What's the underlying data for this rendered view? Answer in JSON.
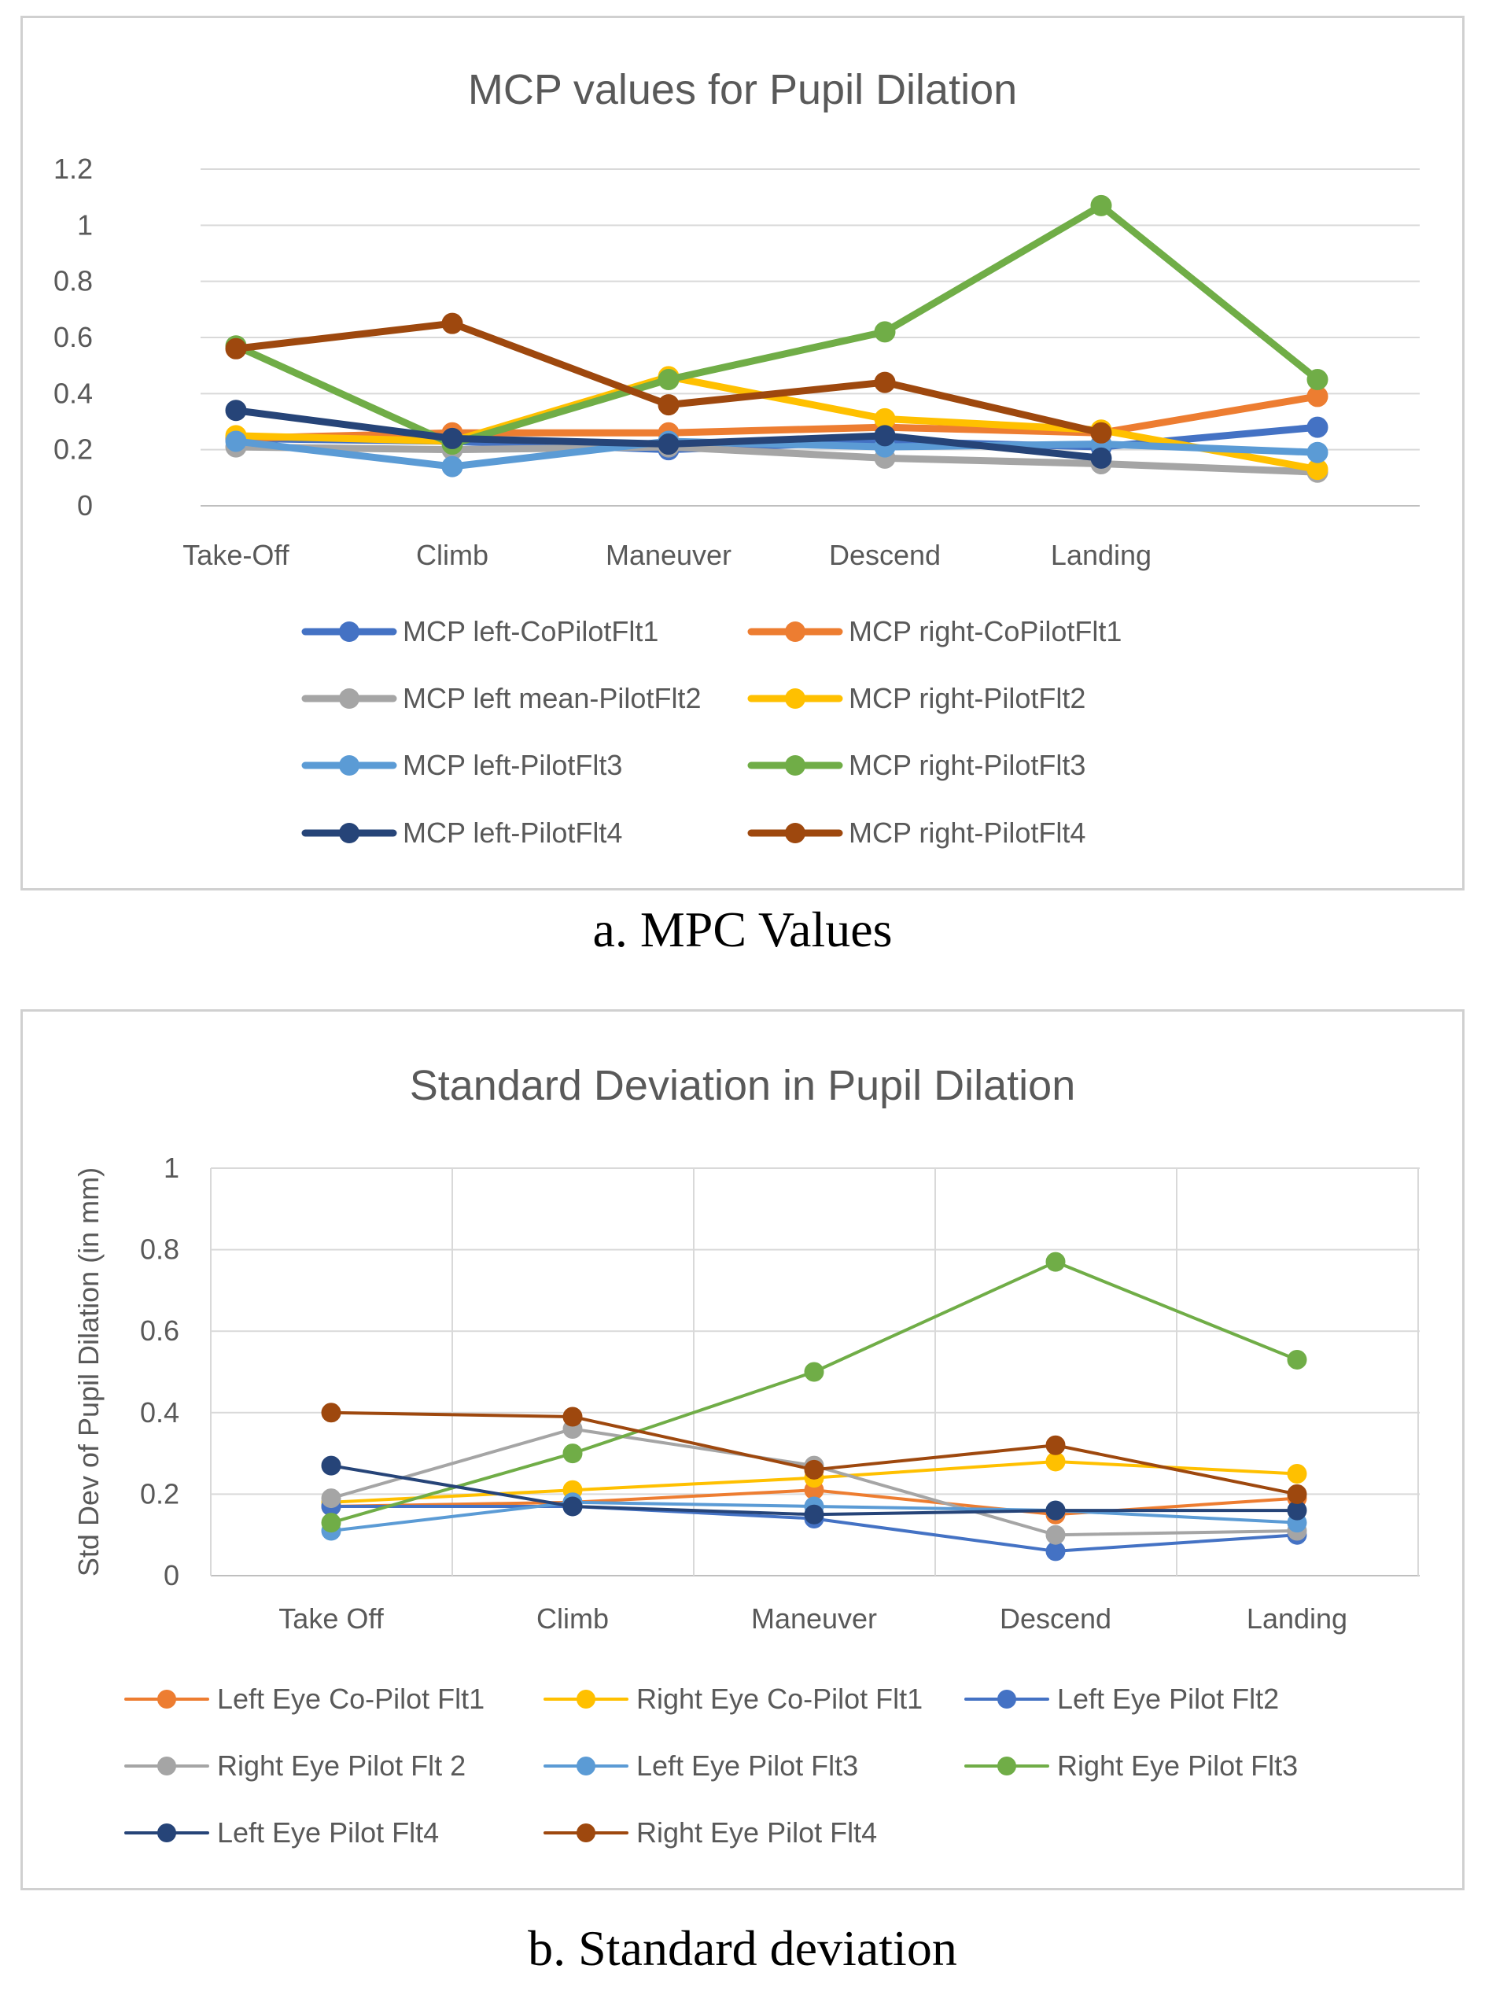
{
  "captions": {
    "a": "a. MPC Values",
    "b": "b. Standard deviation"
  },
  "chart_data": [
    {
      "type": "line",
      "title": "MCP values for Pupil Dilation",
      "xlabel": "",
      "ylabel": "",
      "ylim": [
        0,
        1.2
      ],
      "yticks": [
        0,
        0.2,
        0.4,
        0.6,
        0.8,
        1,
        1.2
      ],
      "grid": "horizontal",
      "legend_position": "bottom",
      "categories": [
        "Take-Off",
        "Climb",
        "Maneuver",
        "Descend",
        "Landing",
        ""
      ],
      "series": [
        {
          "name": "MCP left-CoPilotFlt1",
          "color": "#4472C4",
          "values": [
            0.24,
            0.23,
            0.2,
            0.23,
            0.21,
            0.28
          ]
        },
        {
          "name": "MCP right-CoPilotFlt1",
          "color": "#ED7D31",
          "values": [
            0.24,
            0.26,
            0.26,
            0.28,
            0.26,
            0.39
          ]
        },
        {
          "name": "MCP left mean-PilotFlt2",
          "color": "#A5A5A5",
          "values": [
            0.21,
            0.2,
            0.21,
            0.17,
            0.15,
            0.12
          ]
        },
        {
          "name": "MCP right-PilotFlt2",
          "color": "#FFC000",
          "values": [
            0.25,
            0.23,
            0.46,
            0.31,
            0.27,
            0.13
          ]
        },
        {
          "name": "MCP left-PilotFlt3",
          "color": "#5B9BD5",
          "values": [
            0.23,
            0.14,
            0.23,
            0.21,
            0.22,
            0.19
          ]
        },
        {
          "name": "MCP  right-PilotFlt3",
          "color": "#70AD47",
          "values": [
            0.57,
            0.22,
            0.45,
            0.62,
            1.07,
            0.45
          ]
        },
        {
          "name": "MCP left-PilotFlt4",
          "color": "#264478",
          "values": [
            0.34,
            0.24,
            0.22,
            0.25,
            0.17,
            null
          ]
        },
        {
          "name": "MCP  right-PilotFlt4",
          "color": "#9E480E",
          "values": [
            0.56,
            0.65,
            0.36,
            0.44,
            0.26,
            null
          ]
        }
      ]
    },
    {
      "type": "line",
      "title": "Standard Deviation in Pupil Dilation",
      "xlabel": "",
      "ylabel": "Std Dev of Pupil Dilation (in mm)",
      "ylim": [
        0,
        1
      ],
      "yticks": [
        0,
        0.2,
        0.4,
        0.6,
        0.8,
        1
      ],
      "grid": "both",
      "legend_position": "bottom",
      "categories": [
        "Take Off",
        "Climb",
        "Maneuver",
        "Descend",
        "Landing"
      ],
      "series": [
        {
          "name": "Left Eye Co-Pilot Flt1",
          "color": "#ED7D31",
          "values": [
            0.17,
            0.18,
            0.21,
            0.15,
            0.19
          ]
        },
        {
          "name": "Right Eye Co-Pilot Flt1",
          "color": "#FFC000",
          "values": [
            0.18,
            0.21,
            0.24,
            0.28,
            0.25
          ]
        },
        {
          "name": "Left Eye Pilot Flt2",
          "color": "#4472C4",
          "values": [
            0.17,
            0.17,
            0.14,
            0.06,
            0.1
          ]
        },
        {
          "name": "Right Eye Pilot Flt 2",
          "color": "#A5A5A5",
          "values": [
            0.19,
            0.36,
            0.27,
            0.1,
            0.11
          ]
        },
        {
          "name": "Left Eye Pilot Flt3",
          "color": "#5B9BD5",
          "values": [
            0.11,
            0.18,
            0.17,
            0.16,
            0.13
          ]
        },
        {
          "name": "Right Eye Pilot Flt3",
          "color": "#70AD47",
          "values": [
            0.13,
            0.3,
            0.5,
            0.77,
            0.53
          ]
        },
        {
          "name": "Left Eye Pilot Flt4",
          "color": "#264478",
          "values": [
            0.27,
            0.17,
            0.15,
            0.16,
            0.16
          ]
        },
        {
          "name": "Right Eye Pilot Flt4",
          "color": "#9E480E",
          "values": [
            0.4,
            0.39,
            0.26,
            0.32,
            0.2
          ]
        }
      ]
    }
  ]
}
